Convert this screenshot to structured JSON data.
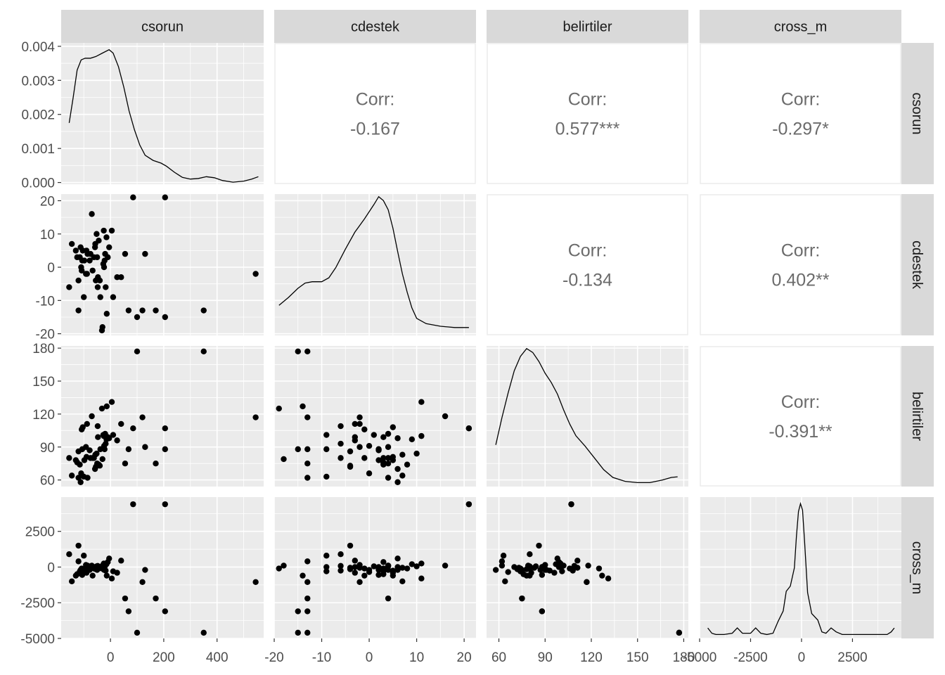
{
  "chart_data": {
    "type": "scatter",
    "title": "",
    "layout": "pairs-matrix",
    "variables": [
      "csorun",
      "cdestek",
      "belirtiler",
      "cross_m"
    ],
    "strip_labels": {
      "top": [
        "csorun",
        "cdestek",
        "belirtiler",
        "cross_m"
      ],
      "right": [
        "csorun",
        "cdestek",
        "belirtiler",
        "cross_m"
      ]
    },
    "axes": {
      "csorun": {
        "range": [
          -185,
          575
        ],
        "ticks": [
          0,
          200,
          400
        ],
        "tick_labels": [
          "0",
          "200",
          "400"
        ]
      },
      "cdestek": {
        "range": [
          -20,
          22.5
        ],
        "ticks": [
          -20,
          -10,
          0,
          10,
          20
        ],
        "tick_labels": [
          "-20",
          "-10",
          "0",
          "10",
          "20"
        ]
      },
      "belirtiler": {
        "range": [
          52,
          183
        ],
        "ticks": [
          60,
          90,
          120,
          150,
          180
        ],
        "tick_labels": [
          "60",
          "90",
          "120",
          "150",
          "180"
        ]
      },
      "cross_m": {
        "range": [
          -5000,
          4900
        ],
        "ticks": [
          -5000,
          -2500,
          0,
          2500
        ],
        "tick_labels": [
          "-5000",
          "-2500",
          "0",
          "2500"
        ]
      }
    },
    "density_axis": {
      "range": [
        -5e-05,
        0.0041
      ],
      "ticks": [
        0,
        0.001,
        0.002,
        0.003,
        0.004
      ],
      "tick_labels": [
        "0.000",
        "0.001",
        "0.002",
        "0.003",
        "0.004"
      ]
    },
    "y_axes_rows": {
      "cdestek": {
        "range": [
          -20.5,
          22
        ],
        "ticks": [
          -20,
          -10,
          0,
          10,
          20
        ],
        "tick_labels": [
          "-20",
          "-10",
          "0",
          "10",
          "20"
        ]
      },
      "belirtiler": {
        "range": [
          54,
          182
        ],
        "ticks": [
          60,
          90,
          120,
          150,
          180
        ],
        "tick_labels": [
          "60",
          "90",
          "120",
          "150",
          "180"
        ]
      },
      "cross_m": {
        "range": [
          -5000,
          4900
        ],
        "ticks": [
          -5000,
          -2500,
          0,
          2500
        ],
        "tick_labels": [
          "-5000",
          "-2500",
          "0",
          "2500"
        ]
      }
    },
    "correlations": [
      {
        "row": "csorun",
        "col": "cdestek",
        "label": "Corr:",
        "value": "-0.167"
      },
      {
        "row": "csorun",
        "col": "belirtiler",
        "label": "Corr:",
        "value": "0.577***"
      },
      {
        "row": "csorun",
        "col": "cross_m",
        "label": "Corr:",
        "value": "-0.297*"
      },
      {
        "row": "cdestek",
        "col": "belirtiler",
        "label": "Corr:",
        "value": "-0.134"
      },
      {
        "row": "cdestek",
        "col": "cross_m",
        "label": "Corr:",
        "value": "0.402**"
      },
      {
        "row": "belirtiler",
        "col": "cross_m",
        "label": "Corr:",
        "value": "-0.391**"
      }
    ],
    "densities": {
      "csorun": [
        [
          -155,
          0.00175
        ],
        [
          -140,
          0.0025
        ],
        [
          -125,
          0.0033
        ],
        [
          -110,
          0.0036
        ],
        [
          -95,
          0.00365
        ],
        [
          -75,
          0.00365
        ],
        [
          -55,
          0.0037
        ],
        [
          -30,
          0.0038
        ],
        [
          -5,
          0.0039
        ],
        [
          10,
          0.0038
        ],
        [
          30,
          0.0034
        ],
        [
          50,
          0.0028
        ],
        [
          70,
          0.0021
        ],
        [
          90,
          0.00155
        ],
        [
          110,
          0.0011
        ],
        [
          130,
          0.0008
        ],
        [
          160,
          0.00065
        ],
        [
          190,
          0.00057
        ],
        [
          210,
          0.00048
        ],
        [
          240,
          0.0003
        ],
        [
          270,
          0.00015
        ],
        [
          300,
          0.0001
        ],
        [
          330,
          0.00012
        ],
        [
          360,
          0.00017
        ],
        [
          390,
          0.00014
        ],
        [
          420,
          6e-05
        ],
        [
          460,
          1e-05
        ],
        [
          500,
          4e-05
        ],
        [
          530,
          0.0001
        ],
        [
          555,
          0.00017
        ]
      ],
      "cdestek": [
        [
          -19,
          0.2
        ],
        [
          -17,
          0.26
        ],
        [
          -15,
          0.33
        ],
        [
          -13.5,
          0.37
        ],
        [
          -12,
          0.38
        ],
        [
          -10,
          0.38
        ],
        [
          -8.5,
          0.41
        ],
        [
          -7,
          0.49
        ],
        [
          -5,
          0.63
        ],
        [
          -3,
          0.76
        ],
        [
          -1,
          0.86
        ],
        [
          1,
          0.97
        ],
        [
          2,
          1.03
        ],
        [
          3,
          1.0
        ],
        [
          4,
          0.93
        ],
        [
          5,
          0.79
        ],
        [
          6,
          0.61
        ],
        [
          7,
          0.44
        ],
        [
          8,
          0.3
        ],
        [
          9,
          0.18
        ],
        [
          10,
          0.1
        ],
        [
          12,
          0.06
        ],
        [
          15,
          0.04
        ],
        [
          18,
          0.03
        ],
        [
          21,
          0.03
        ]
      ],
      "belirtiler": [
        [
          58,
          0.29
        ],
        [
          62,
          0.5
        ],
        [
          66,
          0.69
        ],
        [
          70,
          0.86
        ],
        [
          74,
          0.97
        ],
        [
          78,
          1.03
        ],
        [
          82,
          1.0
        ],
        [
          86,
          0.93
        ],
        [
          90,
          0.84
        ],
        [
          94,
          0.77
        ],
        [
          98,
          0.68
        ],
        [
          102,
          0.56
        ],
        [
          106,
          0.45
        ],
        [
          110,
          0.36
        ],
        [
          116,
          0.28
        ],
        [
          122,
          0.19
        ],
        [
          128,
          0.1
        ],
        [
          134,
          0.04
        ],
        [
          142,
          0.01
        ],
        [
          150,
          0.0
        ],
        [
          158,
          0.0
        ],
        [
          166,
          0.02
        ],
        [
          172,
          0.04
        ],
        [
          176,
          0.045
        ]
      ],
      "cross_m": [
        [
          -4600,
          0.05
        ],
        [
          -4400,
          0.01
        ],
        [
          -4200,
          0.0
        ],
        [
          -3800,
          0.0
        ],
        [
          -3400,
          0.01
        ],
        [
          -3150,
          0.05
        ],
        [
          -2900,
          0.01
        ],
        [
          -2500,
          0.01
        ],
        [
          -2250,
          0.05
        ],
        [
          -2000,
          0.01
        ],
        [
          -1700,
          0.0
        ],
        [
          -1400,
          0.01
        ],
        [
          -1150,
          0.1
        ],
        [
          -900,
          0.18
        ],
        [
          -750,
          0.33
        ],
        [
          -550,
          0.37
        ],
        [
          -350,
          0.51
        ],
        [
          -250,
          0.75
        ],
        [
          -150,
          0.94
        ],
        [
          -50,
          1.0
        ],
        [
          50,
          0.95
        ],
        [
          150,
          0.71
        ],
        [
          300,
          0.32
        ],
        [
          500,
          0.16
        ],
        [
          800,
          0.11
        ],
        [
          1000,
          0.02
        ],
        [
          1200,
          0.01
        ],
        [
          1450,
          0.05
        ],
        [
          1700,
          0.02
        ],
        [
          2000,
          0.0
        ],
        [
          2500,
          0.0
        ],
        [
          3500,
          0.0
        ],
        [
          4200,
          0.0
        ],
        [
          4400,
          0.02
        ],
        [
          4550,
          0.05
        ]
      ]
    },
    "observations": [
      {
        "csorun": -155,
        "cdestek": -6,
        "belirtiler": 80,
        "cross_m": 900
      },
      {
        "csorun": -145,
        "cdestek": 7,
        "belirtiler": 64,
        "cross_m": -1000
      },
      {
        "csorun": -130,
        "cdestek": 5,
        "belirtiler": 78,
        "cross_m": -600
      },
      {
        "csorun": -125,
        "cdestek": 3,
        "belirtiler": 76,
        "cross_m": -500
      },
      {
        "csorun": -120,
        "cdestek": -4,
        "belirtiler": 86,
        "cross_m": 1500
      },
      {
        "csorun": -120,
        "cdestek": -13,
        "belirtiler": 62,
        "cross_m": 400
      },
      {
        "csorun": -115,
        "cdestek": 3,
        "belirtiler": 74,
        "cross_m": -300
      },
      {
        "csorun": -112,
        "cdestek": 6,
        "belirtiler": 58,
        "cross_m": -200
      },
      {
        "csorun": -110,
        "cdestek": 0,
        "belirtiler": 66,
        "cross_m": -350
      },
      {
        "csorun": -108,
        "cdestek": -1,
        "belirtiler": 106,
        "cross_m": -100
      },
      {
        "csorun": -106,
        "cdestek": 2,
        "belirtiler": 88,
        "cross_m": -550
      },
      {
        "csorun": -104,
        "cdestek": 5,
        "belirtiler": 108,
        "cross_m": -250
      },
      {
        "csorun": -100,
        "cdestek": -9,
        "belirtiler": 63,
        "cross_m": 800
      },
      {
        "csorun": -98,
        "cdestek": 2,
        "belirtiler": 78,
        "cross_m": -150
      },
      {
        "csorun": -92,
        "cdestek": -2,
        "belirtiler": 90,
        "cross_m": 150
      },
      {
        "csorun": -90,
        "cdestek": 5,
        "belirtiler": 81,
        "cross_m": -400
      },
      {
        "csorun": -88,
        "cdestek": -2,
        "belirtiler": 111,
        "cross_m": -50
      },
      {
        "csorun": -86,
        "cdestek": 4,
        "belirtiler": 62,
        "cross_m": 100
      },
      {
        "csorun": -78,
        "cdestek": 2,
        "belirtiler": 87,
        "cross_m": -200
      },
      {
        "csorun": -75,
        "cdestek": 4,
        "belirtiler": 80,
        "cross_m": 50
      },
      {
        "csorun": -70,
        "cdestek": 16,
        "belirtiler": 118,
        "cross_m": 100
      },
      {
        "csorun": -67,
        "cdestek": -1,
        "belirtiler": 80,
        "cross_m": -600
      },
      {
        "csorun": -62,
        "cdestek": 3,
        "belirtiler": 80,
        "cross_m": -100
      },
      {
        "csorun": -58,
        "cdestek": 6,
        "belirtiler": 70,
        "cross_m": 0
      },
      {
        "csorun": -57,
        "cdestek": 7,
        "belirtiler": 83,
        "cross_m": -50
      },
      {
        "csorun": -55,
        "cdestek": -4,
        "belirtiler": 72,
        "cross_m": -150
      },
      {
        "csorun": -52,
        "cdestek": 10,
        "belirtiler": 84,
        "cross_m": 50
      },
      {
        "csorun": -50,
        "cdestek": 3,
        "belirtiler": 75,
        "cross_m": -200
      },
      {
        "csorun": -48,
        "cdestek": -6,
        "belirtiler": 109,
        "cross_m": 80
      },
      {
        "csorun": -47,
        "cdestek": -3,
        "belirtiler": 99,
        "cross_m": 0
      },
      {
        "csorun": -44,
        "cdestek": 8,
        "belirtiler": 74,
        "cross_m": -100
      },
      {
        "csorun": -40,
        "cdestek": -4,
        "belirtiler": 73,
        "cross_m": -50
      },
      {
        "csorun": -38,
        "cdestek": -9,
        "belirtiler": 88,
        "cross_m": 0
      },
      {
        "csorun": -32,
        "cdestek": -19,
        "belirtiler": 125,
        "cross_m": -100
      },
      {
        "csorun": -30,
        "cdestek": -18,
        "belirtiler": 79,
        "cross_m": 100
      },
      {
        "csorun": -27,
        "cdestek": 1,
        "belirtiler": 101,
        "cross_m": 50
      },
      {
        "csorun": -25,
        "cdestek": 11,
        "belirtiler": 100,
        "cross_m": 250
      },
      {
        "csorun": -24,
        "cdestek": 0,
        "belirtiler": 91,
        "cross_m": -200
      },
      {
        "csorun": -22,
        "cdestek": 2,
        "belirtiler": 88,
        "cross_m": 0
      },
      {
        "csorun": -20,
        "cdestek": 4,
        "belirtiler": 102,
        "cross_m": 100
      },
      {
        "csorun": -18,
        "cdestek": -6,
        "belirtiler": 93,
        "cross_m": -250
      },
      {
        "csorun": -15,
        "cdestek": 9,
        "belirtiler": 97,
        "cross_m": 200
      },
      {
        "csorun": -14,
        "cdestek": -14,
        "belirtiler": 127,
        "cross_m": -600
      },
      {
        "csorun": -10,
        "cdestek": 3,
        "belirtiler": 99,
        "cross_m": 350
      },
      {
        "csorun": -5,
        "cdestek": 6,
        "belirtiler": 98,
        "cross_m": 600
      },
      {
        "csorun": 5,
        "cdestek": 11,
        "belirtiler": 131,
        "cross_m": -800
      },
      {
        "csorun": 10,
        "cdestek": -9,
        "belirtiler": 101,
        "cross_m": -300
      },
      {
        "csorun": 25,
        "cdestek": -3,
        "belirtiler": 96,
        "cross_m": -400
      },
      {
        "csorun": 40,
        "cdestek": -3,
        "belirtiler": 111,
        "cross_m": 450
      },
      {
        "csorun": 55,
        "cdestek": 4,
        "belirtiler": 75,
        "cross_m": -2200
      },
      {
        "csorun": 68,
        "cdestek": -13,
        "belirtiler": 88,
        "cross_m": -3100
      },
      {
        "csorun": 85,
        "cdestek": 21,
        "belirtiler": 107,
        "cross_m": 4400
      },
      {
        "csorun": 100,
        "cdestek": -15,
        "belirtiler": 177,
        "cross_m": -4600
      },
      {
        "csorun": 120,
        "cdestek": -13,
        "belirtiler": 117,
        "cross_m": -1050
      },
      {
        "csorun": 130,
        "cdestek": 4,
        "belirtiler": 90,
        "cross_m": -200
      },
      {
        "csorun": 170,
        "cdestek": -13,
        "belirtiler": 75,
        "cross_m": -2200
      },
      {
        "csorun": 205,
        "cdestek": 21,
        "belirtiler": 107,
        "cross_m": 4400
      },
      {
        "csorun": 205,
        "cdestek": -15,
        "belirtiler": 88,
        "cross_m": -3100
      },
      {
        "csorun": 350,
        "cdestek": -13,
        "belirtiler": 177,
        "cross_m": -4600
      },
      {
        "csorun": 545,
        "cdestek": -2,
        "belirtiler": 117,
        "cross_m": -1050
      }
    ]
  }
}
